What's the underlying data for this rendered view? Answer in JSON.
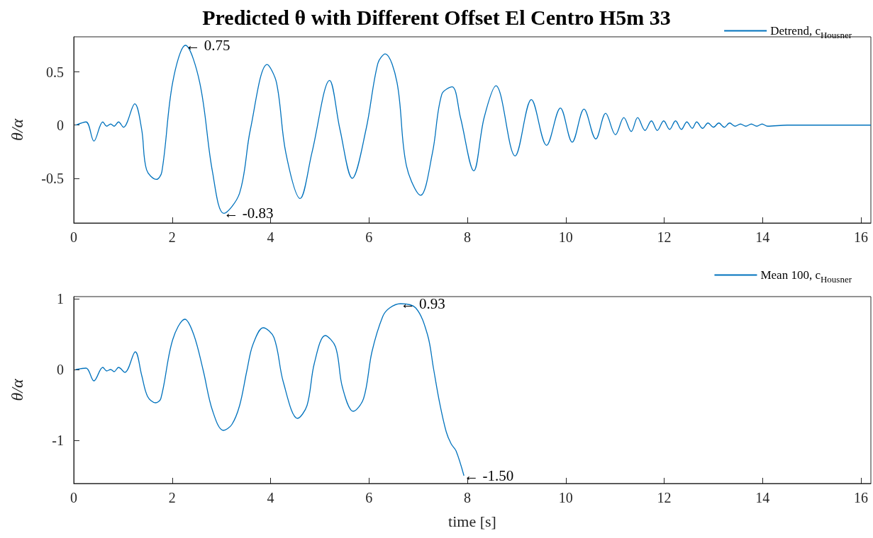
{
  "chart_data": [
    {
      "type": "line",
      "title": "Predicted θ with Different Offset El Centro H5m 33",
      "ylabel": "θ/α",
      "legend": "top right",
      "x": [
        0.04,
        0.25,
        0.41,
        0.59,
        0.67,
        0.75,
        0.82,
        0.91,
        1.01,
        1.24,
        1.38,
        1.48,
        1.68,
        1.79,
        2.01,
        2.27,
        2.56,
        2.82,
        3.05,
        3.37,
        3.59,
        3.93,
        4.12,
        4.31,
        4.6,
        4.84,
        5.2,
        5.41,
        5.66,
        5.94,
        6.18,
        6.33,
        6.57,
        6.76,
        7.05,
        7.29,
        7.48,
        7.69,
        7.86,
        8.13,
        8.34,
        8.58,
        8.97,
        9.3,
        9.61,
        9.89,
        10.13,
        10.37,
        10.61,
        10.81,
        11.01,
        11.18,
        11.33,
        11.46,
        11.61,
        11.74,
        11.86,
        11.99,
        12.11,
        12.23,
        12.35,
        12.46,
        12.57,
        12.66,
        12.78,
        12.89,
        13.0,
        13.11,
        13.22,
        13.33,
        13.44,
        13.55,
        13.66,
        13.77,
        13.88,
        13.99,
        14.1,
        14.5,
        16.2
      ],
      "series": [
        {
          "name": "Detrend, c$_{Housner}$",
          "color": "#0072bd",
          "values": [
            0,
            0.03,
            -0.15,
            0.03,
            -0.01,
            0.01,
            -0.01,
            0.03,
            -0.02,
            0.2,
            -0.04,
            -0.42,
            -0.51,
            -0.44,
            0.4,
            0.75,
            0.4,
            -0.44,
            -0.83,
            -0.64,
            -0.04,
            0.57,
            0.4,
            -0.26,
            -0.69,
            -0.26,
            0.42,
            -0.04,
            -0.5,
            -0.04,
            0.58,
            0.67,
            0.4,
            -0.38,
            -0.66,
            -0.26,
            0.29,
            0.36,
            0.07,
            -0.43,
            0.07,
            0.37,
            -0.29,
            0.24,
            -0.19,
            0.16,
            -0.16,
            0.15,
            -0.13,
            0.11,
            -0.09,
            0.07,
            -0.06,
            0.07,
            -0.05,
            0.04,
            -0.05,
            0.04,
            -0.04,
            0.04,
            -0.04,
            0.03,
            -0.03,
            0.03,
            -0.03,
            0.02,
            -0.02,
            0.02,
            -0.02,
            0.02,
            -0.01,
            0.01,
            -0.01,
            0.01,
            -0.01,
            0.01,
            -0.01,
            0,
            0
          ]
        }
      ],
      "xlim": [
        0,
        16.2
      ],
      "xticks": [
        0,
        2,
        4,
        6,
        8,
        10,
        12,
        14,
        16
      ],
      "ylim": [
        -0.92,
        0.83
      ],
      "yticks": [
        -0.5,
        0,
        0.5
      ],
      "annotations": [
        {
          "text": "← 0.75",
          "x": 2.27,
          "y": 0.75
        },
        {
          "text": "← -0.83",
          "x": 3.05,
          "y": -0.83
        }
      ]
    },
    {
      "type": "line",
      "xlabel": "time [s]",
      "ylabel": "θ/α",
      "legend": "top right",
      "x": [
        0.04,
        0.25,
        0.41,
        0.59,
        0.67,
        0.75,
        0.82,
        0.91,
        1.04,
        1.25,
        1.38,
        1.5,
        1.66,
        1.77,
        2.01,
        2.26,
        2.44,
        2.63,
        2.82,
        3.04,
        3.21,
        3.37,
        3.52,
        3.64,
        3.85,
        4.07,
        4.26,
        4.55,
        4.74,
        4.89,
        5.11,
        5.32,
        5.46,
        5.68,
        5.89,
        6.06,
        6.28,
        6.42,
        6.64,
        6.95,
        7.19,
        7.31,
        7.43,
        7.57,
        7.67,
        7.77,
        7.93
      ],
      "series": [
        {
          "name": "Mean 100, c$_{Housner}$",
          "color": "#0072bd",
          "values": [
            0,
            0.02,
            -0.16,
            0.03,
            -0.02,
            0,
            -0.03,
            0.03,
            -0.04,
            0.25,
            -0.08,
            -0.38,
            -0.47,
            -0.41,
            0.42,
            0.71,
            0.49,
            -0.01,
            -0.58,
            -0.86,
            -0.78,
            -0.51,
            -0.01,
            0.35,
            0.59,
            0.45,
            -0.18,
            -0.69,
            -0.51,
            0.09,
            0.48,
            0.32,
            -0.25,
            -0.59,
            -0.41,
            0.25,
            0.75,
            0.87,
            0.93,
            0.87,
            0.49,
            0.02,
            -0.45,
            -0.88,
            -1.05,
            -1.15,
            -1.5
          ]
        }
      ],
      "xlim": [
        0,
        16.2
      ],
      "xticks": [
        0,
        2,
        4,
        6,
        8,
        10,
        12,
        14,
        16
      ],
      "ylim": [
        -1.61,
        1.03
      ],
      "yticks": [
        -1,
        0,
        1
      ],
      "annotations": [
        {
          "text": "← 0.93",
          "x": 6.64,
          "y": 0.93
        },
        {
          "text": "← -1.50",
          "x": 7.93,
          "y": -1.5
        }
      ]
    }
  ]
}
